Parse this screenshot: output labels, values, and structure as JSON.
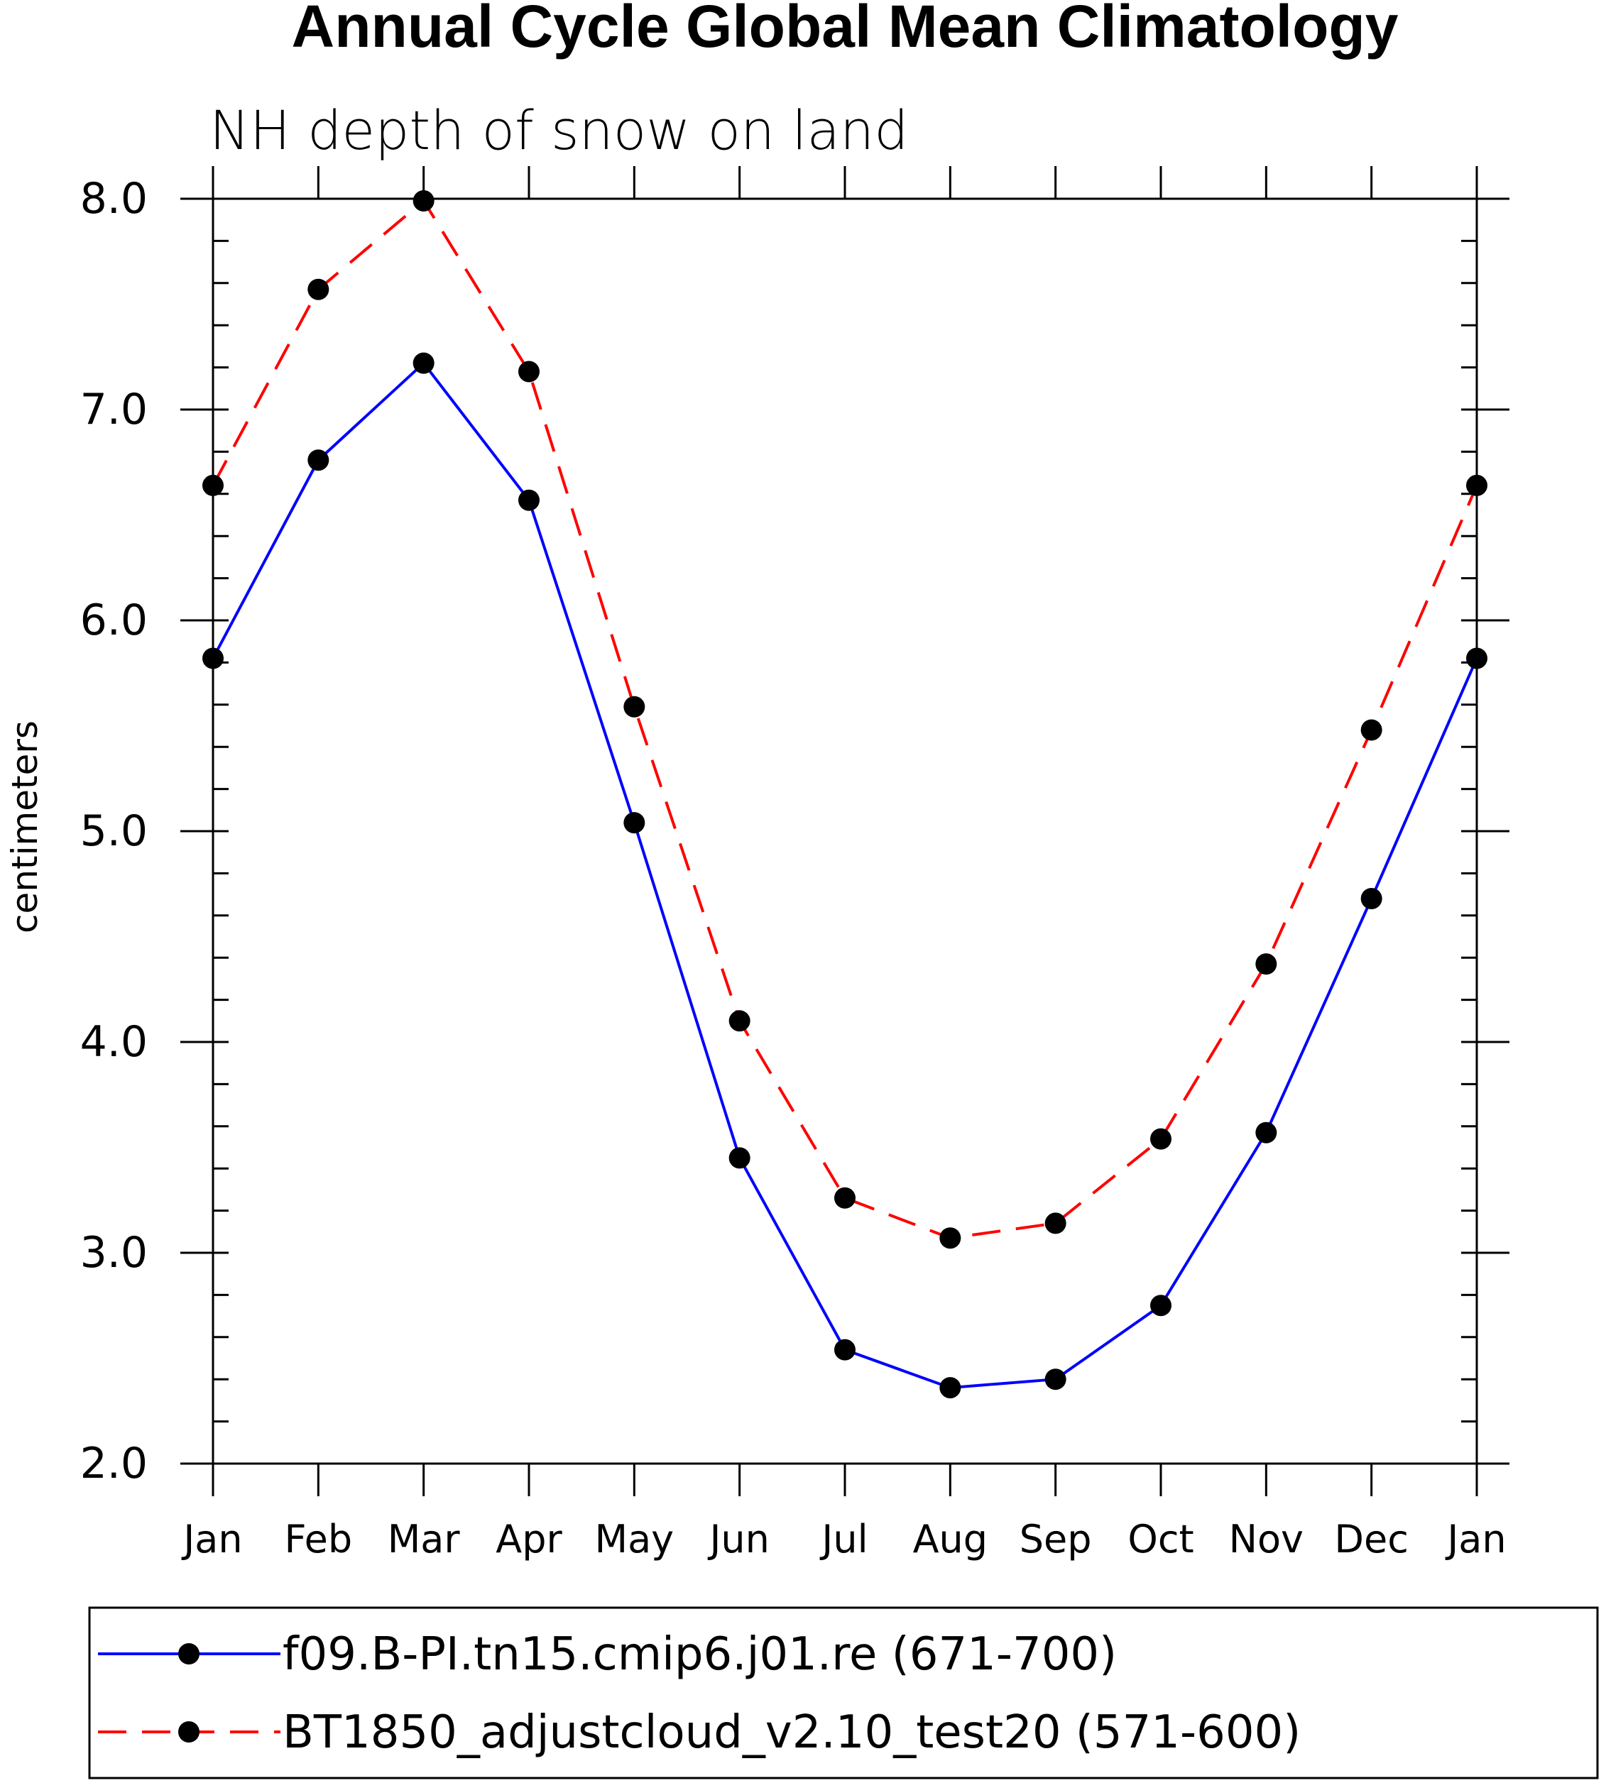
{
  "chart_data": {
    "type": "line",
    "title": "Annual Cycle Global Mean Climatology",
    "subtitle": "NH depth of snow on land",
    "xlabel": "",
    "ylabel": "centimeters",
    "categories": [
      "Jan",
      "Feb",
      "Mar",
      "Apr",
      "May",
      "Jun",
      "Jul",
      "Aug",
      "Sep",
      "Oct",
      "Nov",
      "Dec",
      "Jan"
    ],
    "ylim": [
      2.0,
      8.0
    ],
    "yticks": [
      "2.0",
      "3.0",
      "4.0",
      "5.0",
      "6.0",
      "7.0",
      "8.0"
    ],
    "legend_position": "bottom",
    "series": [
      {
        "name": "f09.B-PI.tn15.cmip6.j01.re (671-700)",
        "color": "#0000ff",
        "dash": "solid",
        "values": [
          5.82,
          6.76,
          7.22,
          6.57,
          5.04,
          3.45,
          2.54,
          2.36,
          2.4,
          2.75,
          3.57,
          4.68,
          5.82
        ]
      },
      {
        "name": "BT1850_adjustcloud_v2.10_test20 (571-600)",
        "color": "#ff0000",
        "dash": "dashed",
        "values": [
          6.64,
          7.57,
          7.99,
          7.18,
          5.59,
          4.1,
          3.26,
          3.07,
          3.14,
          3.54,
          4.37,
          5.48,
          6.64
        ]
      }
    ]
  }
}
